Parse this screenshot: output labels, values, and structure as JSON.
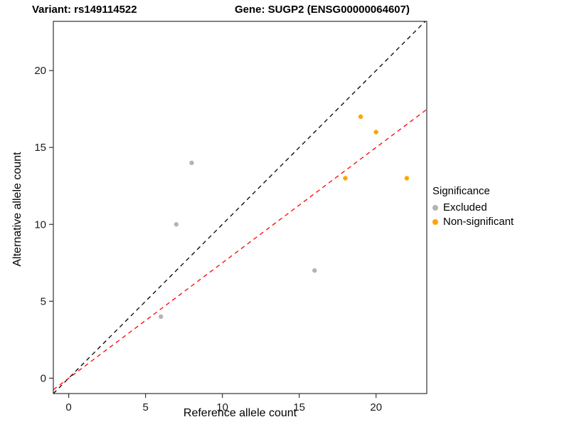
{
  "header": {
    "variant_title": "Variant: rs149114522",
    "gene_title": "Gene: SUGP2 (ENSG00000064607)"
  },
  "chart_data": {
    "type": "scatter",
    "title": "Variant: rs149114522 / Gene: SUGP2 (ENSG00000064607)",
    "xlabel": "Reference allele count",
    "ylabel": "Alternative allele count",
    "xlim": [
      -1,
      23.3
    ],
    "ylim": [
      -1,
      23.2
    ],
    "xticks": [
      0,
      5,
      10,
      15,
      20
    ],
    "yticks": [
      0,
      5,
      10,
      15,
      20
    ],
    "grid": false,
    "series": [
      {
        "name": "Excluded",
        "color": "#b4b4b4",
        "points": [
          [
            6,
            4
          ],
          [
            7,
            10
          ],
          [
            8,
            14
          ],
          [
            16,
            7
          ]
        ]
      },
      {
        "name": "Non-significant",
        "color": "#FFA500",
        "points": [
          [
            18,
            13
          ],
          [
            19,
            17
          ],
          [
            20,
            16
          ],
          [
            22,
            13
          ]
        ]
      }
    ],
    "lines": [
      {
        "name": "identity-line",
        "color": "#000000",
        "dashed": true,
        "slope": 1,
        "intercept": 0
      },
      {
        "name": "expected-ratio-line",
        "color": "#FF0000",
        "dashed": true,
        "slope": 0.75,
        "intercept": 0
      }
    ],
    "legend": {
      "position": "right",
      "title": "Significance",
      "entries": [
        {
          "label": "Excluded",
          "color": "#b4b4b4"
        },
        {
          "label": "Non-significant",
          "color": "#FFA500"
        }
      ]
    }
  }
}
